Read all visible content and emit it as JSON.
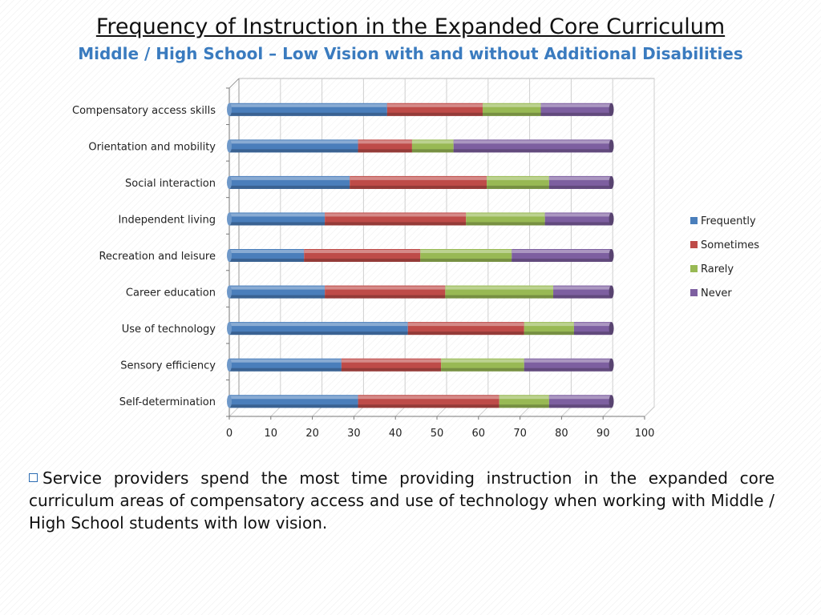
{
  "slide": {
    "title": "Frequency of Instruction in the Expanded Core Curriculum",
    "subtitle": "Middle / High School – Low Vision with and without Additional Disabilities",
    "note": "Service providers spend the most time providing instruction in the expanded core curriculum areas of compensatory access and use of technology when working with Middle / High School students with low vision.",
    "bullet_icon": "square-bullet-icon"
  },
  "chart_data": {
    "type": "bar",
    "orientation": "horizontal",
    "stacked": true,
    "categories": [
      "Compensatory access skills",
      "Orientation and mobility",
      "Social interaction",
      "Independent living",
      "Recreation and leisure",
      "Career education",
      "Use of technology",
      "Sensory efficiency",
      "Self-determination"
    ],
    "series": [
      {
        "name": "Frequently",
        "color": "#4a7ebb",
        "values": [
          38,
          31,
          29,
          23,
          18,
          23,
          43,
          27,
          31
        ]
      },
      {
        "name": "Sometimes",
        "color": "#be4b48",
        "values": [
          23,
          13,
          33,
          34,
          28,
          29,
          28,
          24,
          34
        ]
      },
      {
        "name": "Rarely",
        "color": "#98b954",
        "values": [
          14,
          10,
          15,
          19,
          22,
          26,
          12,
          20,
          12
        ]
      },
      {
        "name": "Never",
        "color": "#7d5fa0",
        "values": [
          17,
          38,
          15,
          16,
          24,
          14,
          9,
          21,
          15
        ]
      }
    ],
    "xlim": [
      0,
      100
    ],
    "xticks": [
      0,
      10,
      20,
      30,
      40,
      50,
      60,
      70,
      80,
      90,
      100
    ],
    "grid": true,
    "legend": "right"
  }
}
